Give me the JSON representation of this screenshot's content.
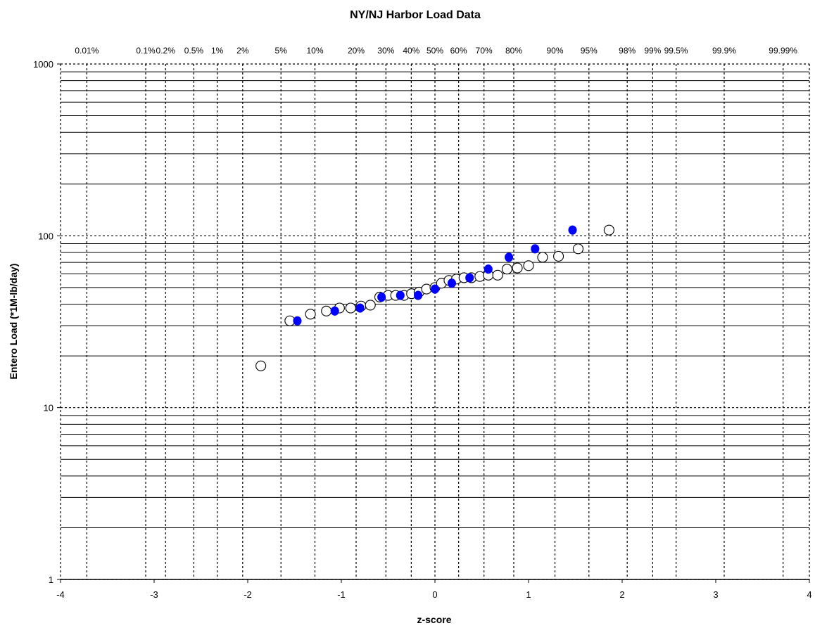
{
  "chart_data": {
    "type": "scatter",
    "title": "NY/NJ Harbor Load Data",
    "xlabel": "z-score",
    "ylabel": "Entero Load (*1M-lb/day)",
    "xlim": [
      -4,
      4
    ],
    "ylim": [
      1,
      1000
    ],
    "y_scale": "log",
    "grid": true,
    "legend": "none",
    "x_ticks": [
      -4,
      -3,
      -2,
      -1,
      0,
      1,
      2,
      3,
      4
    ],
    "y_ticks": [
      1,
      10,
      100,
      1000
    ],
    "percentile_labels": [
      {
        "label": "0.01%",
        "z": -3.719
      },
      {
        "label": "0.1%",
        "z": -3.09
      },
      {
        "label": "0.2%",
        "z": -2.878
      },
      {
        "label": "0.5%",
        "z": -2.576
      },
      {
        "label": "1%",
        "z": -2.326
      },
      {
        "label": "2%",
        "z": -2.054
      },
      {
        "label": "5%",
        "z": -1.645
      },
      {
        "label": "10%",
        "z": -1.282
      },
      {
        "label": "20%",
        "z": -0.842
      },
      {
        "label": "30%",
        "z": -0.524
      },
      {
        "label": "40%",
        "z": -0.253
      },
      {
        "label": "50%",
        "z": 0.0
      },
      {
        "label": "60%",
        "z": 0.253
      },
      {
        "label": "70%",
        "z": 0.524
      },
      {
        "label": "80%",
        "z": 0.842
      },
      {
        "label": "90%",
        "z": 1.282
      },
      {
        "label": "95%",
        "z": 1.645
      },
      {
        "label": "98%",
        "z": 2.054
      },
      {
        "label": "99%",
        "z": 2.326
      },
      {
        "label": "99.5%",
        "z": 2.576
      },
      {
        "label": "99.9%",
        "z": 3.09
      },
      {
        "label": "99.99%",
        "z": 3.719
      }
    ],
    "series": [
      {
        "style": "open-circle",
        "color": "#ffffff",
        "points": [
          {
            "x": -1.86,
            "y": 17.5
          },
          {
            "x": -1.55,
            "y": 32
          },
          {
            "x": -1.33,
            "y": 35
          },
          {
            "x": -1.16,
            "y": 36.5
          },
          {
            "x": -1.02,
            "y": 38
          },
          {
            "x": -0.9,
            "y": 38
          },
          {
            "x": -0.79,
            "y": 39
          },
          {
            "x": -0.69,
            "y": 39.5
          },
          {
            "x": -0.59,
            "y": 44
          },
          {
            "x": -0.5,
            "y": 45
          },
          {
            "x": -0.42,
            "y": 45
          },
          {
            "x": -0.33,
            "y": 45
          },
          {
            "x": -0.25,
            "y": 46
          },
          {
            "x": -0.17,
            "y": 47
          },
          {
            "x": -0.09,
            "y": 49
          },
          {
            "x": 0.0,
            "y": 50
          },
          {
            "x": 0.07,
            "y": 53
          },
          {
            "x": 0.15,
            "y": 55
          },
          {
            "x": 0.23,
            "y": 56
          },
          {
            "x": 0.31,
            "y": 57
          },
          {
            "x": 0.39,
            "y": 57
          },
          {
            "x": 0.48,
            "y": 58
          },
          {
            "x": 0.57,
            "y": 59
          },
          {
            "x": 0.67,
            "y": 59
          },
          {
            "x": 0.77,
            "y": 64
          },
          {
            "x": 0.88,
            "y": 65
          },
          {
            "x": 1.0,
            "y": 67
          },
          {
            "x": 1.15,
            "y": 75
          },
          {
            "x": 1.32,
            "y": 76
          },
          {
            "x": 1.53,
            "y": 84
          },
          {
            "x": 1.86,
            "y": 108
          }
        ]
      },
      {
        "style": "filled-circle",
        "color": "#0000ff",
        "points": [
          {
            "x": -1.47,
            "y": 32
          },
          {
            "x": -1.07,
            "y": 36.5
          },
          {
            "x": -0.8,
            "y": 38
          },
          {
            "x": -0.57,
            "y": 44
          },
          {
            "x": -0.37,
            "y": 45
          },
          {
            "x": -0.18,
            "y": 45
          },
          {
            "x": 0.0,
            "y": 49
          },
          {
            "x": 0.18,
            "y": 53
          },
          {
            "x": 0.37,
            "y": 57
          },
          {
            "x": 0.57,
            "y": 64
          },
          {
            "x": 0.79,
            "y": 75
          },
          {
            "x": 1.07,
            "y": 84
          },
          {
            "x": 1.47,
            "y": 108
          }
        ]
      }
    ]
  }
}
